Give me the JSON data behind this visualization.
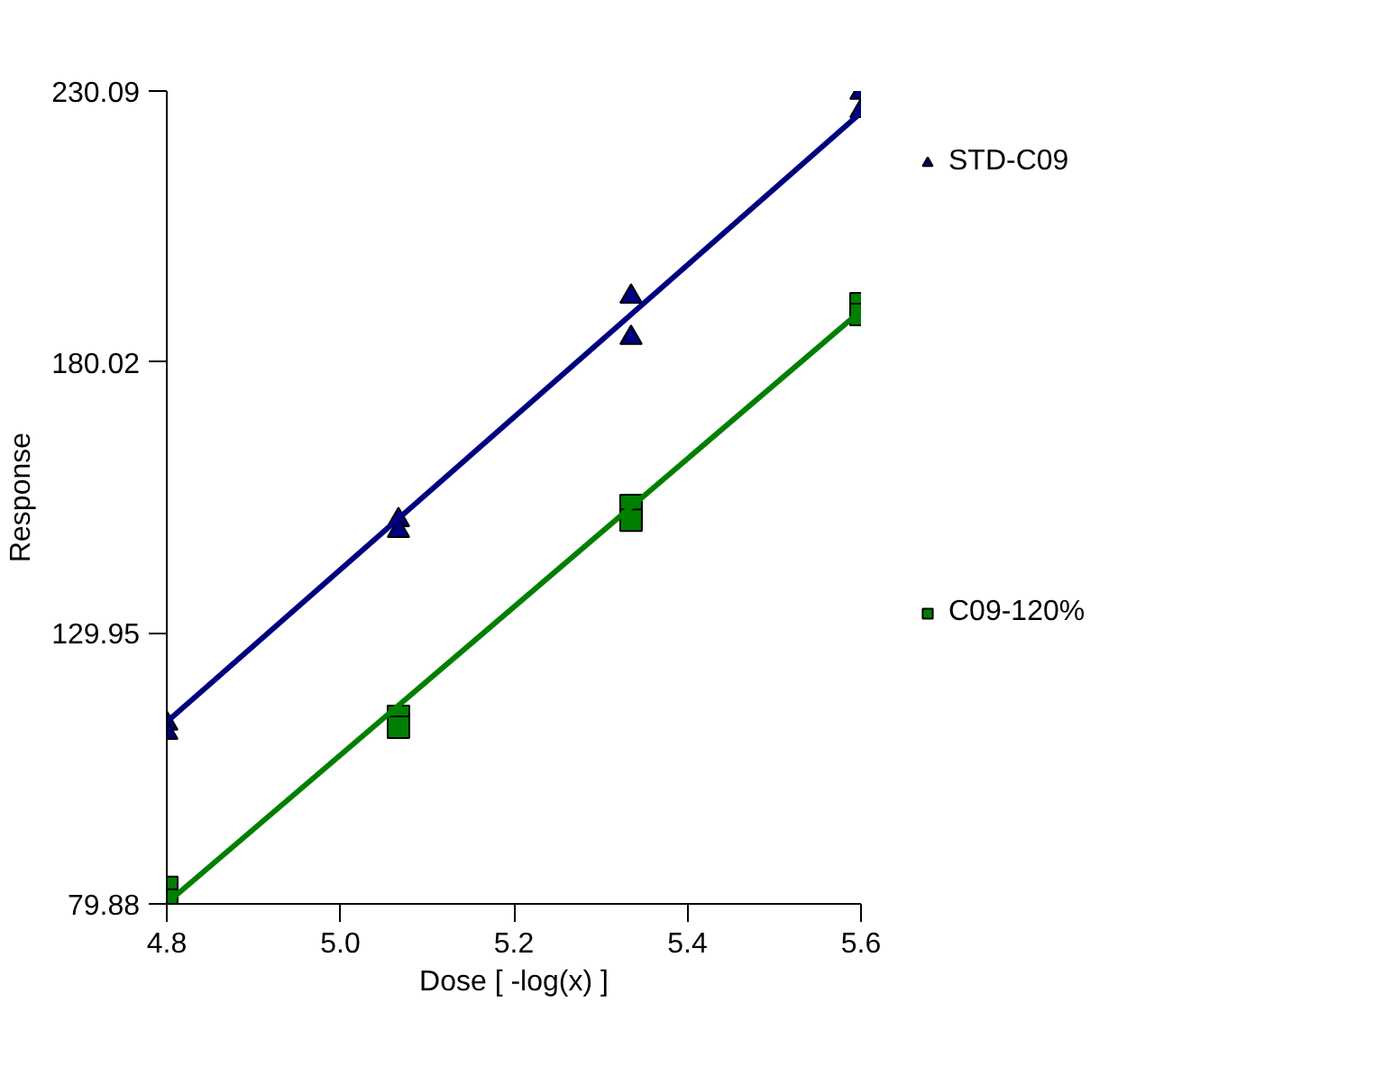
{
  "chart_data": {
    "type": "scatter",
    "xlabel": "Dose [ -log(x) ]",
    "ylabel": "Response",
    "xlim": [
      4.8,
      5.6
    ],
    "ylim": [
      79.88,
      230.09
    ],
    "xticks": [
      {
        "value": 4.8,
        "label": "4.8"
      },
      {
        "value": 5.0,
        "label": "5.0"
      },
      {
        "value": 5.2,
        "label": "5.2"
      },
      {
        "value": 5.4,
        "label": "5.4"
      },
      {
        "value": 5.6,
        "label": "5.6"
      }
    ],
    "yticks": [
      79.88,
      129.95,
      180.02,
      230.09
    ],
    "grid": false,
    "legend": "right",
    "series": [
      {
        "name": "STD-C09",
        "color": "#00007f",
        "marker": "triangle",
        "x": [
          4.8,
          4.8,
          5.067,
          5.067,
          5.335,
          5.335,
          5.6,
          5.6
        ],
        "values": [
          113.2,
          111.5,
          150.8,
          148.8,
          192.1,
          184.5,
          229.8,
          226.4
        ]
      },
      {
        "name": "C09-120%",
        "color": "#007f00",
        "marker": "square",
        "x": [
          4.8,
          4.8,
          5.067,
          5.067,
          5.335,
          5.335,
          5.6,
          5.6
        ],
        "values": [
          82.9,
          80.6,
          114.5,
          112.5,
          153.5,
          150.8,
          190.8,
          188.8
        ]
      },
      {
        "type": "line",
        "color": "#00007f",
        "x": [
          4.8,
          5.6
        ],
        "values": [
          113.5,
          226.1
        ]
      },
      {
        "type": "line",
        "color": "#007f00",
        "x": [
          4.8,
          5.6
        ],
        "values": [
          80.0,
          189.5
        ]
      }
    ]
  }
}
